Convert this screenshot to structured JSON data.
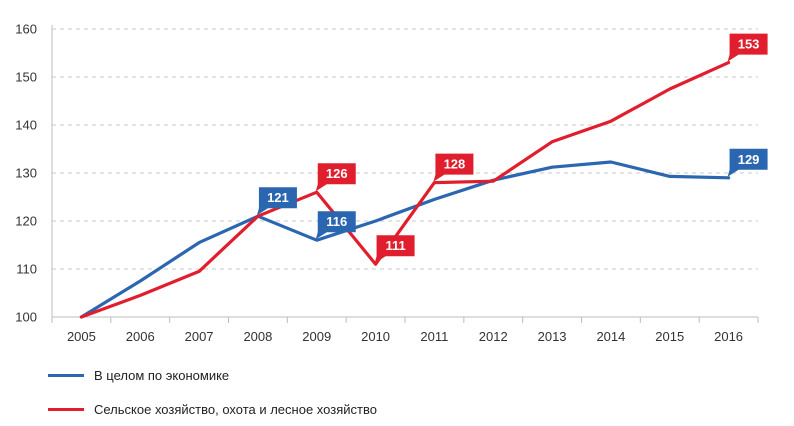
{
  "chart_data": {
    "type": "line",
    "x": [
      "2005",
      "2006",
      "2007",
      "2008",
      "2009",
      "2010",
      "2011",
      "2012",
      "2013",
      "2014",
      "2015",
      "2016"
    ],
    "ylim": [
      100,
      160
    ],
    "yticks": [
      100,
      110,
      120,
      130,
      140,
      150,
      160
    ],
    "grid": true,
    "legend_position": "bottom-left",
    "series": [
      {
        "name": "В целом по экономике",
        "color": "#2b66b0",
        "values": [
          100,
          107.5,
          115.5,
          121,
          116,
          120,
          124.5,
          128.5,
          131.2,
          132.3,
          129.3,
          129
        ],
        "labels": [
          {
            "x": "2008",
            "text": "121"
          },
          {
            "x": "2009",
            "text": "116"
          },
          {
            "x": "2016",
            "text": "129"
          }
        ]
      },
      {
        "name": "Сельское хозяйство, охота и лесное хозяйство",
        "color": "#e01e2d",
        "values": [
          100,
          104.5,
          109.5,
          121,
          126,
          111,
          128,
          128.3,
          136.5,
          140.8,
          147.5,
          153
        ],
        "labels": [
          {
            "x": "2009",
            "text": "126"
          },
          {
            "x": "2010",
            "text": "111"
          },
          {
            "x": "2011",
            "text": "128"
          },
          {
            "x": "2016",
            "text": "153"
          }
        ]
      }
    ]
  }
}
